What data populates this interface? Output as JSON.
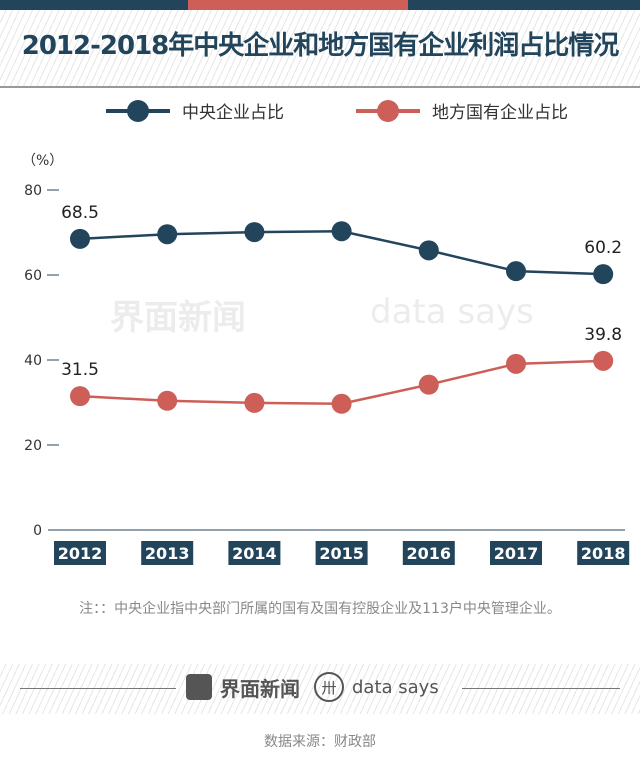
{
  "title": "2012-2018年中央企业和地方国有企业利润占比情况",
  "colors": {
    "central": "#23455c",
    "local": "#cd5f58",
    "top_bar_left": "#23455c",
    "top_bar_mid": "#cd5f58"
  },
  "chart_data": {
    "type": "line",
    "title": "2012-2018年中央企业和地方国有企业利润占比情况",
    "ylabel": "（%）",
    "ylim": [
      0,
      80
    ],
    "yticks": [
      "0",
      "20",
      "40",
      "60",
      "80"
    ],
    "categories": [
      "2012",
      "2013",
      "2014",
      "2015",
      "2016",
      "2017",
      "2018"
    ],
    "legend_position": "top",
    "grid": false,
    "series": [
      {
        "name": "中央企业占比",
        "values": [
          68.5,
          69.6,
          70.1,
          70.3,
          65.8,
          60.9,
          60.2
        ],
        "labels": [
          "68.5",
          "",
          "",
          "",
          "",
          "",
          "60.2"
        ]
      },
      {
        "name": "地方国有企业占比",
        "values": [
          31.5,
          30.4,
          29.9,
          29.7,
          34.2,
          39.1,
          39.8
        ],
        "labels": [
          "31.5",
          "",
          "",
          "",
          "",
          "",
          "39.8"
        ]
      }
    ]
  },
  "note": "注：：中央企业指中央部门所属的国有及国有控股企业及113户中央管理企业。",
  "footer": {
    "logo1": "界面新闻",
    "logo2": "data says",
    "source": "数据来源：财政部"
  },
  "watermark": {
    "text1": "界面新闻",
    "text2": "data says"
  }
}
